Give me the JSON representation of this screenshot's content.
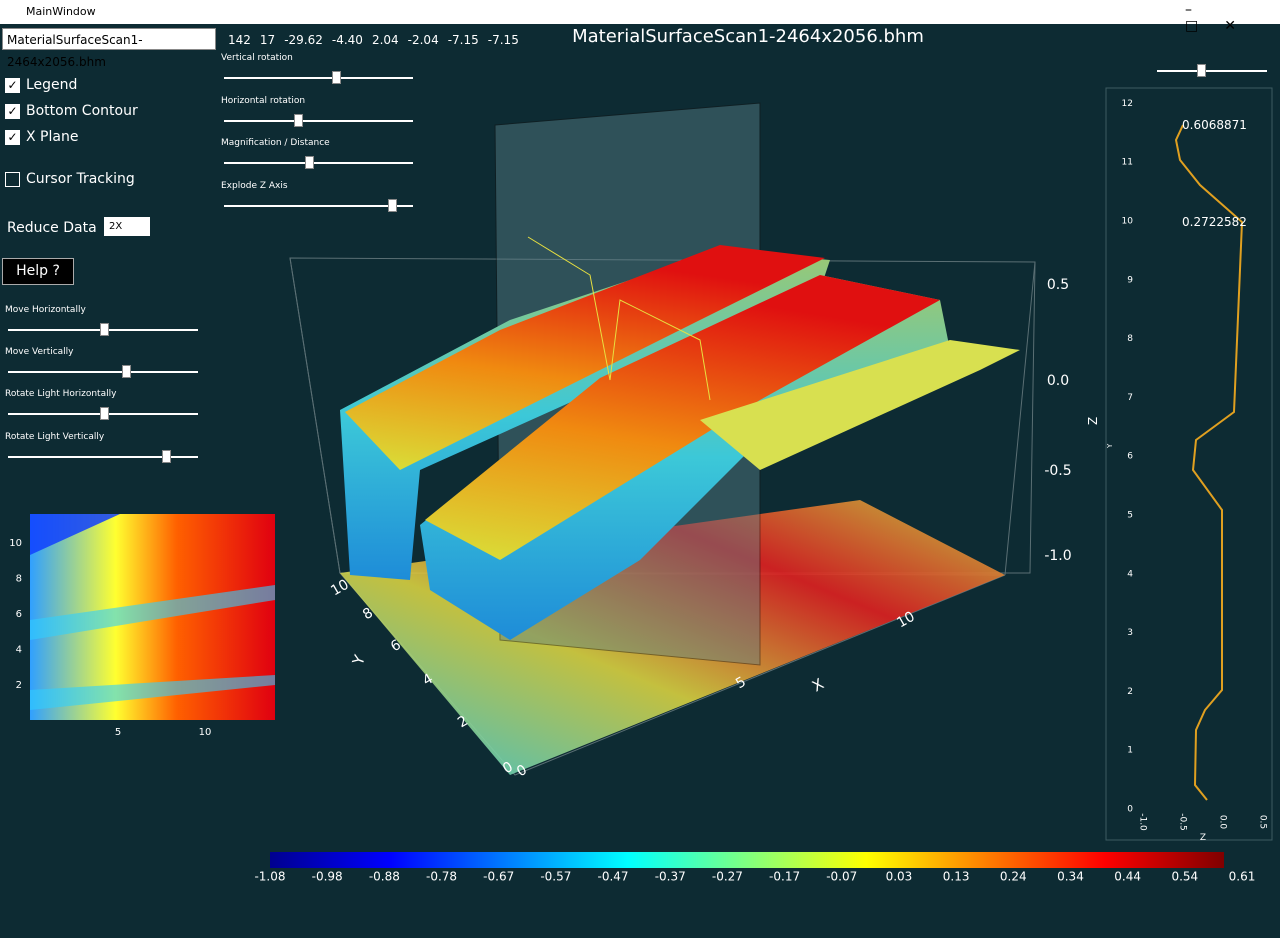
{
  "window": {
    "title": "MainWindow"
  },
  "toolbar": {
    "file": "MaterialSurfaceScan1-2464x2056.bhm",
    "stats": [
      "142",
      "17",
      "-29.62",
      "-4.40",
      "2.04",
      "-2.04",
      "-7.15",
      "-7.15"
    ]
  },
  "plot_title": "MaterialSurfaceScan1-2464x2056.bhm",
  "checkboxes": [
    {
      "label": "Legend",
      "checked": true
    },
    {
      "label": "Bottom Contour",
      "checked": true
    },
    {
      "label": "X Plane",
      "checked": true
    },
    {
      "label": "Cursor Tracking",
      "checked": false
    }
  ],
  "reduce": {
    "label": "Reduce Data",
    "value": "2X"
  },
  "help": "Help ?",
  "left_sliders": [
    "Move Horizontally",
    "Move Vertically",
    "Rotate Light Horizontally",
    "Rotate Light Vertically"
  ],
  "top_sliders": [
    "Vertical rotation",
    "Horizontal rotation",
    "Magnification / Distance",
    "Explode Z Axis"
  ],
  "surface": {
    "z_ticks": [
      "0.5",
      "0.0",
      "-0.5",
      "-1.0"
    ],
    "y_ticks": [
      "10",
      "8",
      "6",
      "4",
      "2",
      "0"
    ],
    "x_ticks": [
      "0",
      "5",
      "10"
    ],
    "x_label": "X",
    "y_label": "Y"
  },
  "heatmap": {
    "y_ticks": [
      "10",
      "8",
      "6",
      "4",
      "2"
    ],
    "x_ticks": [
      "5",
      "10"
    ]
  },
  "profile": {
    "annotations": [
      "0.6068871",
      "0.2722582"
    ],
    "y_ticks": [
      "0",
      "1",
      "2",
      "3",
      "4",
      "5",
      "6",
      "7",
      "8",
      "9",
      "10",
      "11",
      "12"
    ],
    "x_ticks": [
      "-1.0",
      "-0.5",
      "0.0",
      "0.5"
    ],
    "y_label": "Z",
    "y_sublabel": "Y",
    "x_label": "Z"
  },
  "colorbar": {
    "labels": [
      "-1.08",
      "-0.98",
      "-0.88",
      "-0.78",
      "-0.67",
      "-0.57",
      "-0.47",
      "-0.37",
      "-0.27",
      "-0.17",
      "-0.07",
      "0.03",
      "0.13",
      "0.24",
      "0.34",
      "0.44",
      "0.54",
      "0.61"
    ]
  }
}
